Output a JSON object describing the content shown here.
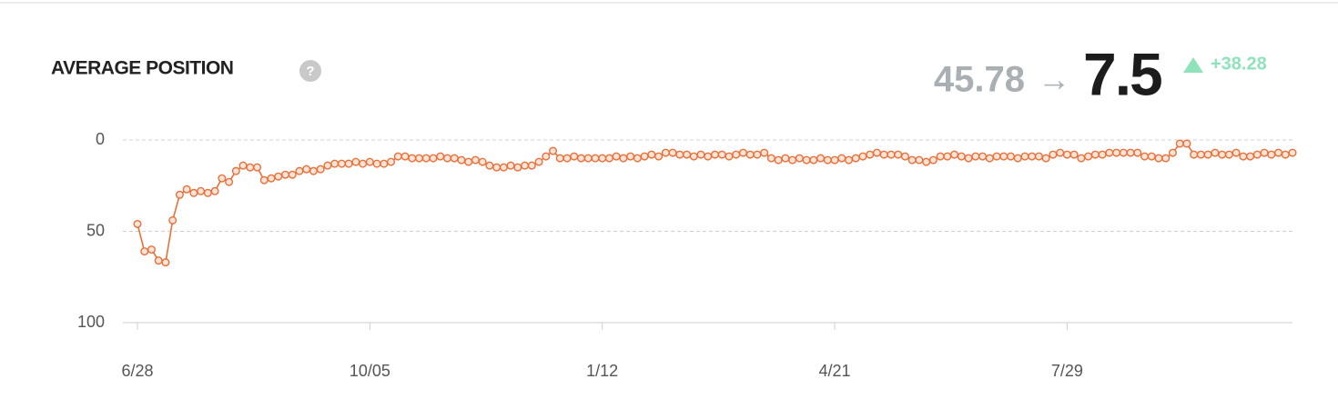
{
  "chart_data": {
    "type": "line",
    "title": "AVERAGE POSITION",
    "help_icon": "?",
    "summary": {
      "start": 45.78,
      "arrow": "→",
      "end": 7.5,
      "change": "+38.28"
    },
    "categories": [
      "6/28",
      null,
      null,
      null,
      null,
      null,
      null,
      null,
      null,
      null,
      null,
      null,
      null,
      null,
      null,
      null,
      null,
      null,
      null,
      null,
      null,
      null,
      null,
      null,
      null,
      null,
      null,
      null,
      null,
      null,
      null,
      null,
      null,
      "10/05",
      null,
      null,
      null,
      null,
      null,
      null,
      null,
      null,
      null,
      null,
      null,
      null,
      null,
      null,
      null,
      null,
      null,
      null,
      null,
      null,
      null,
      null,
      null,
      null,
      null,
      null,
      null,
      null,
      null,
      null,
      null,
      null,
      "1/12",
      null,
      null,
      null,
      null,
      null,
      null,
      null,
      null,
      null,
      null,
      null,
      null,
      null,
      null,
      null,
      null,
      null,
      null,
      null,
      null,
      null,
      null,
      null,
      null,
      null,
      null,
      null,
      null,
      null,
      null,
      null,
      null,
      "4/21",
      null,
      null,
      null,
      null,
      null,
      null,
      null,
      null,
      null,
      null,
      null,
      null,
      null,
      null,
      null,
      null,
      null,
      null,
      null,
      null,
      null,
      null,
      null,
      null,
      null,
      null,
      null,
      null,
      null,
      null,
      null,
      null,
      "7/29",
      null,
      null,
      null,
      null,
      null,
      null,
      null,
      null,
      null,
      null,
      null,
      null,
      null,
      null,
      null,
      null,
      null,
      null,
      null,
      null,
      null,
      null,
      null,
      null,
      null,
      null,
      null,
      null,
      null,
      null,
      null,
      null
    ],
    "series": [
      {
        "name": "Average position",
        "color": "#e8703a",
        "values": [
          46,
          61,
          60,
          66,
          67,
          44,
          30,
          27,
          29,
          28,
          29,
          28,
          21,
          23,
          17,
          14,
          15,
          15,
          22,
          21,
          20,
          19,
          19,
          17,
          16,
          17,
          16,
          14,
          13,
          13,
          13,
          12,
          13,
          12,
          13,
          13,
          12,
          9,
          9,
          10,
          10,
          10,
          10,
          9,
          10,
          10,
          11,
          12,
          11,
          12,
          14,
          15,
          15,
          14,
          15,
          14,
          14,
          12,
          9,
          6,
          10,
          10,
          9,
          10,
          10,
          10,
          10,
          10,
          9,
          10,
          9,
          10,
          9,
          8,
          9,
          7,
          7,
          8,
          8,
          9,
          8,
          9,
          8,
          8,
          9,
          8,
          7,
          8,
          8,
          7,
          10,
          11,
          10,
          11,
          10,
          11,
          11,
          10,
          11,
          11,
          10,
          11,
          10,
          9,
          8,
          7,
          8,
          8,
          8,
          9,
          11,
          11,
          12,
          11,
          9,
          9,
          8,
          9,
          10,
          9,
          9,
          10,
          9,
          9,
          9,
          10,
          9,
          9,
          9,
          10,
          8,
          7,
          8,
          8,
          10,
          9,
          8,
          8,
          7,
          7,
          7,
          7,
          7,
          9,
          9,
          10,
          10,
          7,
          2,
          2,
          8,
          8,
          8,
          7,
          8,
          8,
          7,
          9,
          9,
          8,
          7,
          8,
          7,
          8,
          7
        ]
      }
    ],
    "ylim": [
      0,
      100
    ],
    "y_inverted": true,
    "yticks": [
      0,
      50,
      100
    ],
    "grid": true
  }
}
